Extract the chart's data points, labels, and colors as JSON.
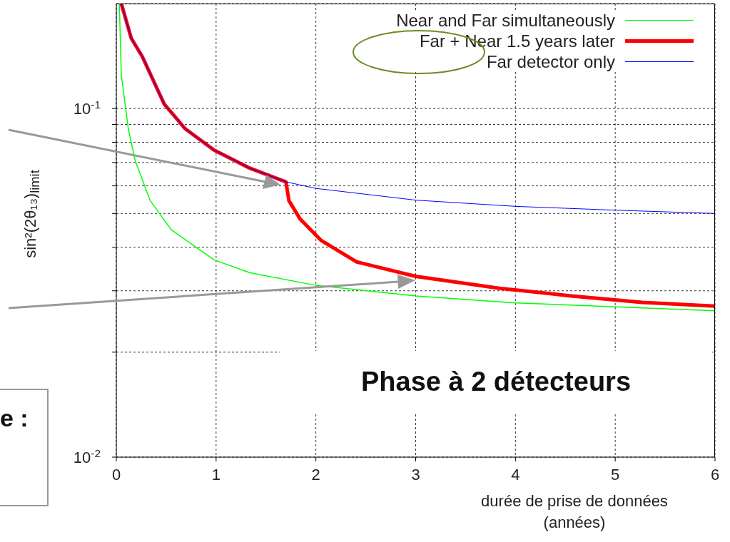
{
  "chart_data": {
    "type": "line",
    "xlabel": "durée de prise de données (années)",
    "ylabel": "sin²(2θ₁₃)$_{limit}$",
    "log": "y",
    "xlim": [
      0,
      6
    ],
    "xticks": [
      0,
      1,
      2,
      3,
      4,
      5,
      6
    ],
    "ylim": [
      0.01,
      0.2
    ],
    "yticks": [
      {
        "value": 0.01,
        "label": "10$^{-2}$"
      },
      {
        "value": 0.02,
        "label": null
      },
      {
        "value": 0.03,
        "label": null
      },
      {
        "value": 0.04,
        "label": null
      },
      {
        "value": 0.05,
        "label": null
      },
      {
        "value": 0.06,
        "label": null
      },
      {
        "value": 0.07,
        "label": null
      },
      {
        "value": 0.08,
        "label": null
      },
      {
        "value": 0.09,
        "label": null
      },
      {
        "value": 0.1,
        "label": "10$^{-1}$"
      }
    ],
    "grid": true,
    "legend": "top right",
    "annotations": [
      "Phase à 2 détecteurs",
      "e :"
    ],
    "series": [
      {
        "name": "Near and Far simultaneously",
        "color": "#00ff00",
        "x": [
          0.03,
          0.05,
          0.12,
          0.19,
          0.34,
          0.55,
          0.98,
          1.34,
          2,
          3,
          4,
          5,
          6
        ],
        "values": [
          0.2,
          0.125,
          0.0875,
          0.0707,
          0.0544,
          0.0449,
          0.0368,
          0.0338,
          0.0311,
          0.029,
          0.0277,
          0.027,
          0.0263
        ]
      },
      {
        "name": "Far + Near 1.5 years later",
        "color": "#ff0000",
        "x": [
          0.05,
          0.15,
          0.26,
          0.48,
          0.69,
          0.98,
          1.34,
          1.7,
          1.73,
          1.84,
          2.05,
          2.41,
          3,
          3.84,
          4.56,
          5.27,
          6
        ],
        "values": [
          0.2,
          0.159,
          0.141,
          0.103,
          0.0875,
          0.076,
          0.0674,
          0.0616,
          0.0544,
          0.0483,
          0.0419,
          0.0363,
          0.033,
          0.0305,
          0.029,
          0.0278,
          0.0271
        ]
      },
      {
        "name": "Far detector only",
        "color": "#0000ff",
        "x": [
          0.05,
          0.15,
          0.26,
          0.48,
          0.69,
          0.98,
          1.34,
          1.7,
          2,
          3,
          4,
          5,
          6
        ],
        "values": [
          0.2,
          0.159,
          0.141,
          0.103,
          0.0875,
          0.076,
          0.0674,
          0.0616,
          0.059,
          0.0546,
          0.0524,
          0.0511,
          0.05
        ]
      }
    ]
  }
}
